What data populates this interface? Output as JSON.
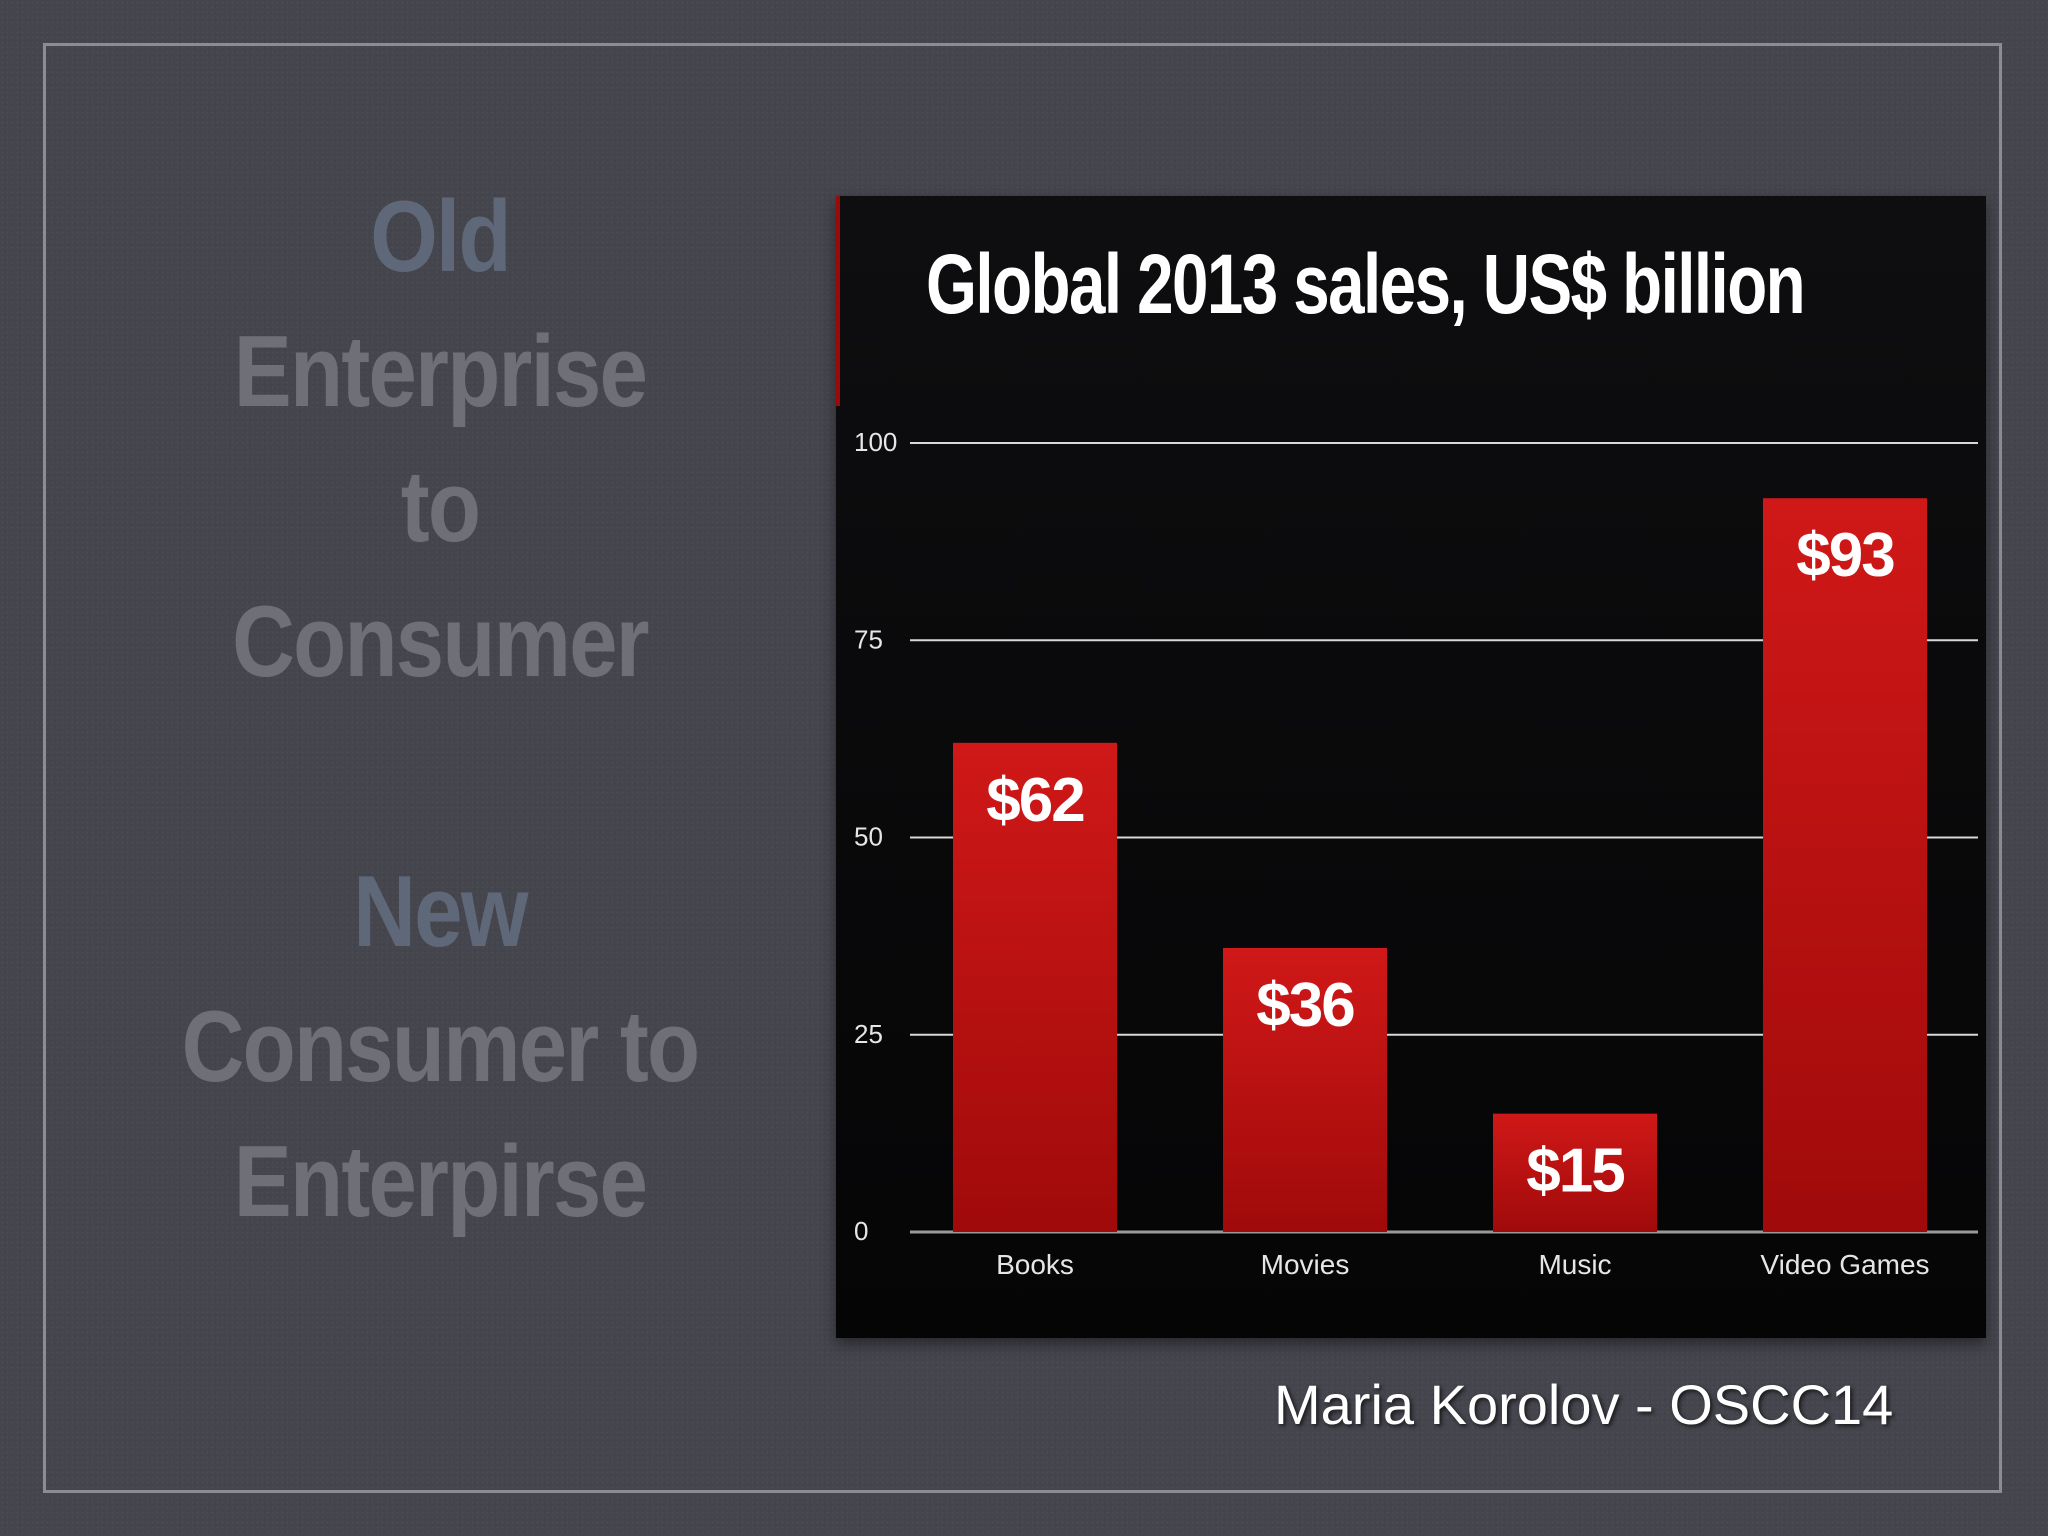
{
  "slide": {
    "left_text": {
      "line1": "Old",
      "line2": "Enterprise",
      "line3": "to",
      "line4": "Consumer",
      "line5": "New",
      "line6": "Consumer to",
      "line7": "Enterpirse"
    },
    "credit": "Maria Korolov - OSCC14",
    "colors": {
      "background": "#45454e",
      "accent_text": "#5f6878",
      "muted_text": "#6f6f78",
      "bar": "#c41414",
      "chart_background": "#0a0a0b"
    }
  },
  "chart_data": {
    "type": "bar",
    "title": "Global 2013 sales, US$ billion",
    "categories": [
      "Books",
      "Movies",
      "Music",
      "Video Games"
    ],
    "values": [
      62,
      36,
      15,
      93
    ],
    "value_labels": [
      "$62",
      "$36",
      "$15",
      "$93"
    ],
    "yticks": [
      0,
      25,
      50,
      75,
      100
    ],
    "ytick_labels": [
      "0",
      "25",
      "50",
      "75",
      "100"
    ],
    "ylim": [
      0,
      100
    ],
    "xlabel": "",
    "ylabel": "",
    "grid": true,
    "legend": "none"
  }
}
